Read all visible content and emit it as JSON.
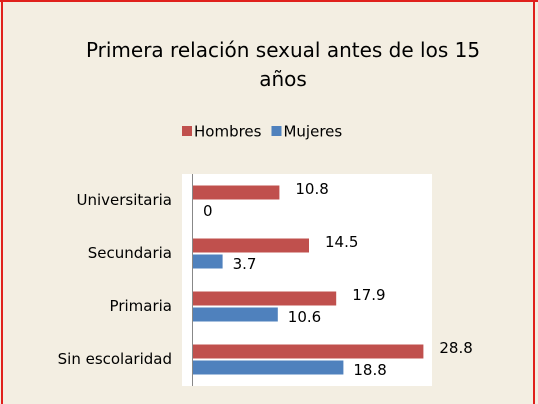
{
  "chart_data": {
    "type": "hbar",
    "title": "Primera relación sexual antes de los 15 años",
    "categories": [
      "Universitaria",
      "Secundaria",
      "Primaria",
      "Sin escolaridad"
    ],
    "series": [
      {
        "name": "Hombres",
        "color": "#c0504d",
        "values": [
          10.8,
          14.5,
          17.9,
          28.8
        ]
      },
      {
        "name": "Mujeres",
        "color": "#4f81bd",
        "values": [
          0,
          3.7,
          10.6,
          18.8
        ]
      }
    ],
    "xlim": [
      0,
      30
    ],
    "legend": "top"
  }
}
